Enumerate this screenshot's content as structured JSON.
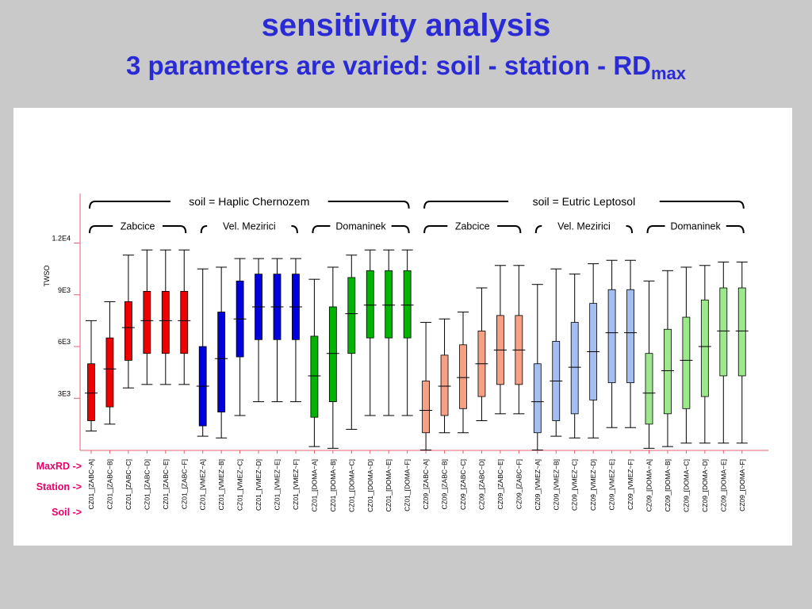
{
  "title": "sensitivity analysis",
  "subtitle_main": "3 parameters are varied: soil - station - RD",
  "subtitle_sub": "max",
  "chart_data": {
    "type": "boxplot",
    "ylabel": "TWSO",
    "yticks": [
      {
        "value": 3000,
        "label": "3E3"
      },
      {
        "value": 6000,
        "label": "6E3"
      },
      {
        "value": 9000,
        "label": "9E3"
      },
      {
        "value": 12000,
        "label": "1.2E4"
      }
    ],
    "row_labels": {
      "maxrd": "MaxRD ->",
      "station": "Station ->",
      "soil": "Soil ->"
    },
    "soil_groups": [
      {
        "label": "soil = Haplic Chernozem"
      },
      {
        "label": "soil = Eutric Leptosol"
      }
    ],
    "station_groups": [
      {
        "label": "Zabcice"
      },
      {
        "label": "Vel. Mezirici"
      },
      {
        "label": "Domaninek"
      },
      {
        "label": "Zabcice"
      },
      {
        "label": "Vel. Mezirici"
      },
      {
        "label": "Domaninek"
      }
    ],
    "colors": [
      "#ee0000",
      "#0000dd",
      "#00b400",
      "#f6a084",
      "#a4bef2",
      "#9de88c"
    ],
    "boxes": [
      {
        "label": "CZ01_[ZABC~A]",
        "min": 1100,
        "q1": 1700,
        "median": 3300,
        "q3": 5000,
        "max": 7500
      },
      {
        "label": "CZ01_[ZABC~B]",
        "min": 1500,
        "q1": 2500,
        "median": 4700,
        "q3": 6500,
        "max": 8600
      },
      {
        "label": "CZ01_[ZABC~C]",
        "min": 3600,
        "q1": 5200,
        "median": 7100,
        "q3": 8600,
        "max": 11300
      },
      {
        "label": "CZ01_[ZABC~D]",
        "min": 3800,
        "q1": 5600,
        "median": 7500,
        "q3": 9200,
        "max": 11600
      },
      {
        "label": "CZ01_[ZABC~E]",
        "min": 3800,
        "q1": 5600,
        "median": 7500,
        "q3": 9200,
        "max": 11600
      },
      {
        "label": "CZ01_[ZABC~F]",
        "min": 3800,
        "q1": 5600,
        "median": 7500,
        "q3": 9200,
        "max": 11600
      },
      {
        "label": "CZ01_[VMEZ~A]",
        "min": 800,
        "q1": 1400,
        "median": 3700,
        "q3": 6000,
        "max": 10500
      },
      {
        "label": "CZ01_[VMEZ~B]",
        "min": 700,
        "q1": 2200,
        "median": 5300,
        "q3": 8000,
        "max": 10600
      },
      {
        "label": "CZ01_[VMEZ~C]",
        "min": 2000,
        "q1": 5400,
        "median": 7600,
        "q3": 9800,
        "max": 11100
      },
      {
        "label": "CZ01_[VMEZ~D]",
        "min": 2800,
        "q1": 6400,
        "median": 8300,
        "q3": 10200,
        "max": 11100
      },
      {
        "label": "CZ01_[VMEZ~E]",
        "min": 2800,
        "q1": 6400,
        "median": 8300,
        "q3": 10200,
        "max": 11100
      },
      {
        "label": "CZ01_[VMEZ~F]",
        "min": 2800,
        "q1": 6400,
        "median": 8300,
        "q3": 10200,
        "max": 11100
      },
      {
        "label": "CZ01_[DOMA~A]",
        "min": 200,
        "q1": 1900,
        "median": 4300,
        "q3": 6600,
        "max": 9900
      },
      {
        "label": "CZ01_[DOMA~B]",
        "min": 100,
        "q1": 2800,
        "median": 5600,
        "q3": 8300,
        "max": 10600
      },
      {
        "label": "CZ01_[DOMA~C]",
        "min": 1200,
        "q1": 5600,
        "median": 7900,
        "q3": 10000,
        "max": 11300
      },
      {
        "label": "CZ01_[DOMA~D]",
        "min": 2000,
        "q1": 6500,
        "median": 8400,
        "q3": 10400,
        "max": 11600
      },
      {
        "label": "CZ01_[DOMA~E]",
        "min": 2000,
        "q1": 6500,
        "median": 8400,
        "q3": 10400,
        "max": 11600
      },
      {
        "label": "CZ01_[DOMA~F]",
        "min": 2000,
        "q1": 6500,
        "median": 8400,
        "q3": 10400,
        "max": 11600
      },
      {
        "label": "CZ09_[ZABC~A]",
        "min": 0,
        "q1": 1000,
        "median": 2300,
        "q3": 4000,
        "max": 7400
      },
      {
        "label": "CZ09_[ZABC~B]",
        "min": 1000,
        "q1": 2000,
        "median": 3700,
        "q3": 5500,
        "max": 7600
      },
      {
        "label": "CZ09_[ZABC~C]",
        "min": 1000,
        "q1": 2400,
        "median": 4200,
        "q3": 6100,
        "max": 8000
      },
      {
        "label": "CZ09_[ZABC~D]",
        "min": 1700,
        "q1": 3100,
        "median": 5000,
        "q3": 6900,
        "max": 9400
      },
      {
        "label": "CZ09_[ZABC~E]",
        "min": 2100,
        "q1": 3800,
        "median": 5800,
        "q3": 7800,
        "max": 10700
      },
      {
        "label": "CZ09_[ZABC~F]",
        "min": 2100,
        "q1": 3800,
        "median": 5800,
        "q3": 7800,
        "max": 10700
      },
      {
        "label": "CZ09_[VMEZ~A]",
        "min": 0,
        "q1": 1000,
        "median": 2800,
        "q3": 5000,
        "max": 9600
      },
      {
        "label": "CZ09_[VMEZ~B]",
        "min": 800,
        "q1": 1700,
        "median": 4000,
        "q3": 6300,
        "max": 10500
      },
      {
        "label": "CZ09_[VMEZ~C]",
        "min": 700,
        "q1": 2100,
        "median": 4800,
        "q3": 7400,
        "max": 10200
      },
      {
        "label": "CZ09_[VMEZ~D]",
        "min": 700,
        "q1": 2900,
        "median": 5700,
        "q3": 8500,
        "max": 10800
      },
      {
        "label": "CZ09_[VMEZ~E]",
        "min": 1300,
        "q1": 3900,
        "median": 6800,
        "q3": 9300,
        "max": 11000
      },
      {
        "label": "CZ09_[VMEZ~F]",
        "min": 1300,
        "q1": 3900,
        "median": 6800,
        "q3": 9300,
        "max": 11000
      },
      {
        "label": "CZ09_[DOMA~A]",
        "min": 100,
        "q1": 1500,
        "median": 3300,
        "q3": 5600,
        "max": 9800
      },
      {
        "label": "CZ09_[DOMA~B]",
        "min": 200,
        "q1": 2100,
        "median": 4600,
        "q3": 7000,
        "max": 10400
      },
      {
        "label": "CZ09_[DOMA~C]",
        "min": 400,
        "q1": 2400,
        "median": 5200,
        "q3": 7700,
        "max": 10600
      },
      {
        "label": "CZ09_[DOMA~D]",
        "min": 400,
        "q1": 3100,
        "median": 6000,
        "q3": 8700,
        "max": 10700
      },
      {
        "label": "CZ09_[DOMA~E]",
        "min": 400,
        "q1": 4300,
        "median": 6900,
        "q3": 9400,
        "max": 10900
      },
      {
        "label": "CZ09_[DOMA~F]",
        "min": 400,
        "q1": 4300,
        "median": 6900,
        "q3": 9400,
        "max": 10900
      }
    ]
  }
}
